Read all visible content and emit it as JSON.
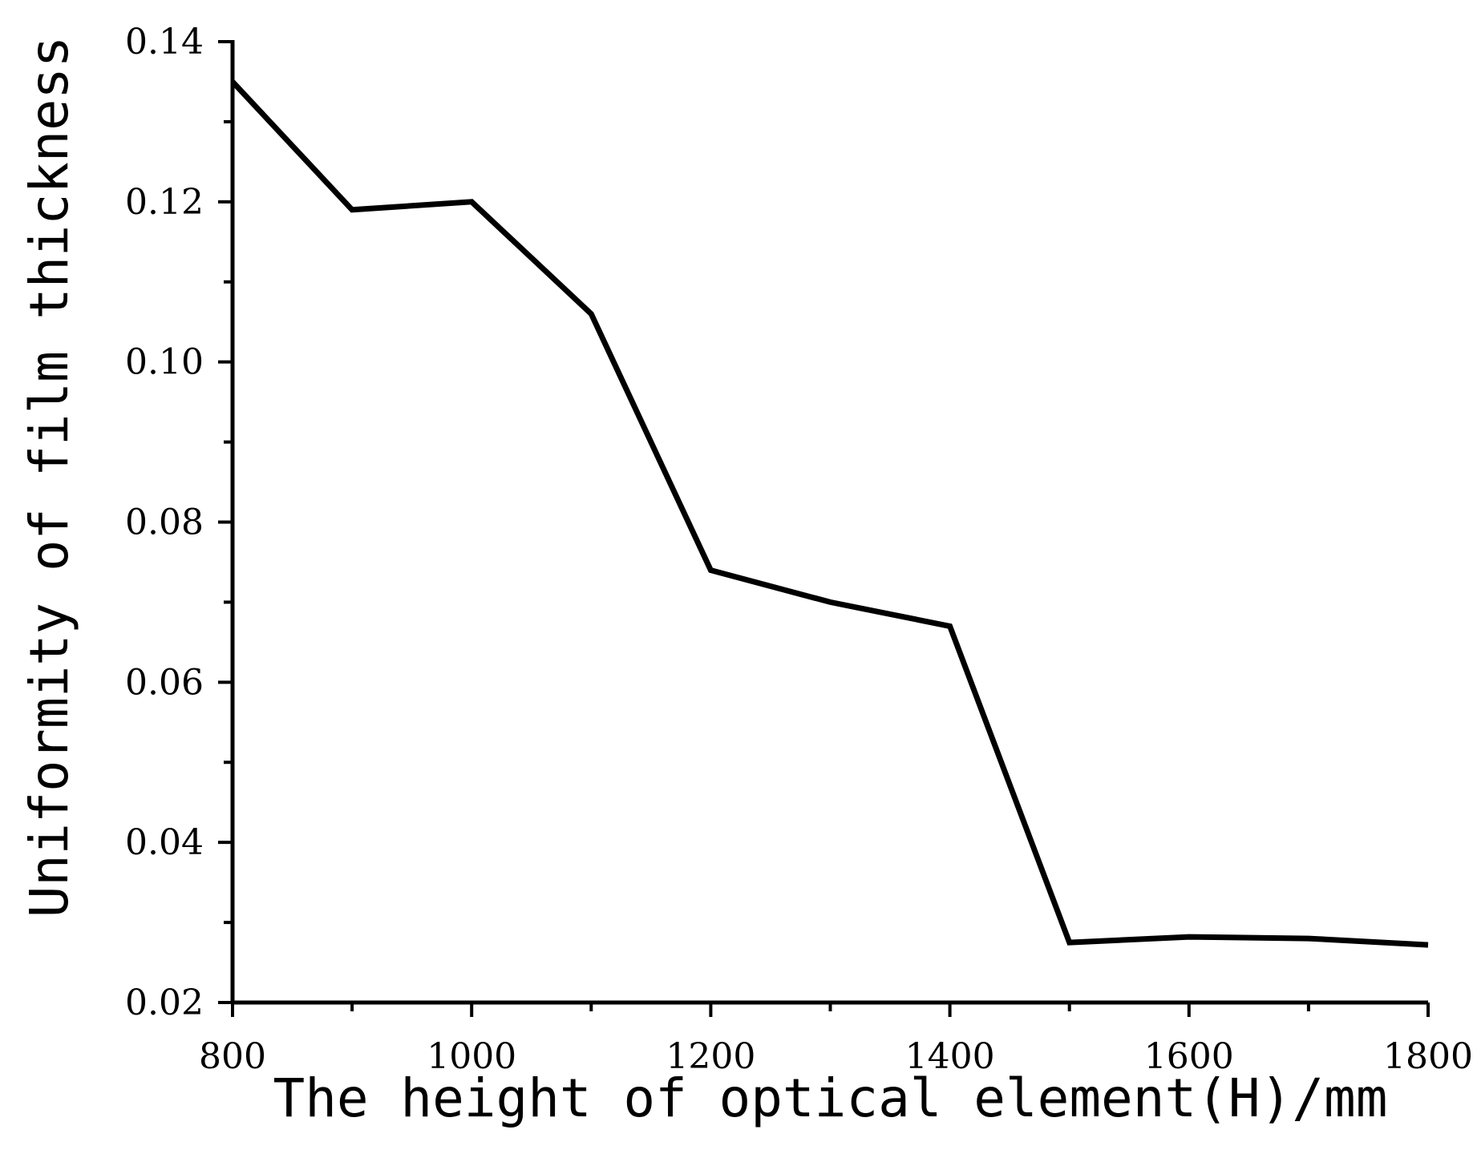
{
  "chart_data": {
    "type": "line",
    "title": "",
    "xlabel": "The height of optical element(H)/mm",
    "ylabel": "Uniformity of film thickness",
    "xlim": [
      800,
      1800
    ],
    "ylim": [
      0.02,
      0.14
    ],
    "x_ticks": [
      800,
      1000,
      1200,
      1400,
      1600,
      1800
    ],
    "x_tick_labels": [
      "800",
      "1000",
      "1200",
      "1400",
      "1600",
      "1800"
    ],
    "x_minor_ticks": [
      900,
      1100,
      1300,
      1500,
      1700
    ],
    "y_ticks": [
      0.02,
      0.04,
      0.06,
      0.08,
      0.1,
      0.12,
      0.14
    ],
    "y_tick_labels": [
      "0.02",
      "0.04",
      "0.06",
      "0.08",
      "0.10",
      "0.12",
      "0.14"
    ],
    "y_minor_ticks": [
      0.03,
      0.05,
      0.07,
      0.09,
      0.11,
      0.13
    ],
    "grid": false,
    "legend": "none",
    "series": [
      {
        "color": "#000000",
        "x": [
          800,
          900,
          1000,
          1100,
          1200,
          1300,
          1400,
          1500,
          1600,
          1700,
          1800
        ],
        "y": [
          0.135,
          0.119,
          0.12,
          0.106,
          0.074,
          0.07,
          0.067,
          0.0275,
          0.0282,
          0.028,
          0.0272
        ]
      }
    ]
  }
}
